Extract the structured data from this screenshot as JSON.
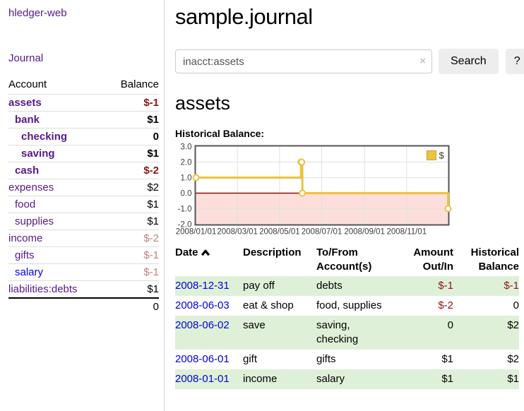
{
  "app": {
    "title": "hledger-web"
  },
  "colors": {
    "purple": "#551a8b",
    "link-blue": "#0000dd",
    "neg-strong": "#8b1717",
    "neg-faded": "#c07f7f",
    "stripe-green": "#dff0d8",
    "gold": "#edc240"
  },
  "sidebar": {
    "journal_link": "Journal",
    "accounts_table": {
      "account_header": "Account",
      "balance_header": "Balance",
      "rows": [
        {
          "name": "assets",
          "depth": 0,
          "bold": true,
          "balance": "$-1",
          "balance_class": "neg-strong",
          "link_class": ""
        },
        {
          "name": "bank",
          "depth": 1,
          "bold": true,
          "balance": "$1",
          "balance_class": "",
          "link_class": ""
        },
        {
          "name": "checking",
          "depth": 2,
          "bold": true,
          "balance": "0",
          "balance_class": "",
          "link_class": ""
        },
        {
          "name": "saving",
          "depth": 2,
          "bold": true,
          "balance": "$1",
          "balance_class": "",
          "link_class": ""
        },
        {
          "name": "cash",
          "depth": 1,
          "bold": true,
          "balance": "$-2",
          "balance_class": "neg-strong",
          "link_class": ""
        },
        {
          "name": "expenses",
          "depth": 0,
          "bold": false,
          "balance": "$2",
          "balance_class": "",
          "link_class": ""
        },
        {
          "name": "food",
          "depth": 1,
          "bold": false,
          "balance": "$1",
          "balance_class": "",
          "link_class": ""
        },
        {
          "name": "supplies",
          "depth": 1,
          "bold": false,
          "balance": "$1",
          "balance_class": "",
          "link_class": ""
        },
        {
          "name": "income",
          "depth": 0,
          "bold": false,
          "balance": "$-2",
          "balance_class": "neg-faded",
          "link_class": ""
        },
        {
          "name": "gifts",
          "depth": 1,
          "bold": false,
          "balance": "$-1",
          "balance_class": "neg-faded",
          "link_class": ""
        },
        {
          "name": "salary",
          "depth": 1,
          "bold": false,
          "balance": "$-1",
          "balance_class": "neg-faded",
          "link_class": "blue-link"
        },
        {
          "name": "liabilities:debts",
          "depth": 0,
          "bold": false,
          "balance": "$1",
          "balance_class": "",
          "link_class": ""
        }
      ],
      "total": "0"
    }
  },
  "header": {
    "title": "sample.journal"
  },
  "search": {
    "value": "inacct:assets",
    "clear_icon": "×",
    "button_label": "Search",
    "help_label": "?"
  },
  "account_page": {
    "title": "assets",
    "chart_label": "Historical Balance:"
  },
  "icons": {
    "sort_ascending": "chevron-up",
    "clear_search": "x-mark",
    "help": "question-mark"
  },
  "chart_data": {
    "type": "line",
    "title": "Historical Balance:",
    "series": [
      {
        "name": "$",
        "color": "#edc240",
        "step": true,
        "points": [
          [
            "2008-01-01",
            1
          ],
          [
            "2008-06-01",
            2
          ],
          [
            "2008-06-02",
            2
          ],
          [
            "2008-06-03",
            0
          ],
          [
            "2008-12-31",
            -1
          ]
        ]
      }
    ],
    "xlim": [
      "2008-01-01",
      "2008-12-31"
    ],
    "ylim": [
      -2,
      3
    ],
    "x_ticks": [
      "2008/01/01",
      "2008/03/01",
      "2008/05/01",
      "2008/07/01",
      "2008/09/01",
      "2008/11/01"
    ],
    "y_ticks": [
      "3.0",
      "2.0",
      "1.0",
      "0.0",
      "-1.0",
      "-2.0"
    ],
    "grid": true,
    "legend_position": "top-right",
    "negative_region_color": "#fcdedb",
    "zero_line_color": "#8b0f0f"
  },
  "register": {
    "headers": {
      "date": "Date",
      "description": "Description",
      "accounts": "To/From Account(s)",
      "amount": "Amount Out/In",
      "balance": "Historical Balance"
    },
    "rows": [
      {
        "date": "2008-12-31",
        "description": "pay off",
        "accounts": "debts",
        "amount": "$-1",
        "balance": "$-1"
      },
      {
        "date": "2008-06-03",
        "description": "eat & shop",
        "accounts": "food, supplies",
        "amount": "$-2",
        "balance": "0"
      },
      {
        "date": "2008-06-02",
        "description": "save",
        "accounts": "saving, checking",
        "amount": "0",
        "balance": "$2"
      },
      {
        "date": "2008-06-01",
        "description": "gift",
        "accounts": "gifts",
        "amount": "$1",
        "balance": "$2"
      },
      {
        "date": "2008-01-01",
        "description": "income",
        "accounts": "salary",
        "amount": "$1",
        "balance": "$1"
      }
    ]
  }
}
